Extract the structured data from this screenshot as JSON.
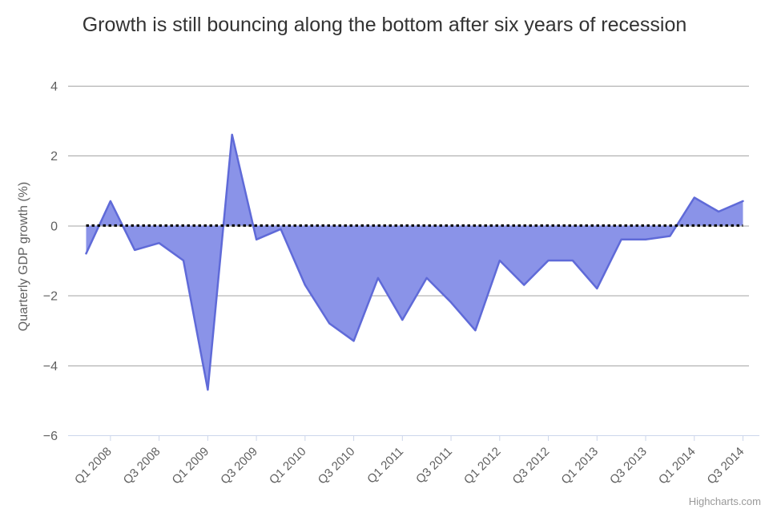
{
  "title": "Growth is still bouncing along the bottom after six years of recession",
  "credit": "Highcharts.com",
  "chart_data": {
    "type": "area",
    "title": "Growth is still bouncing along the bottom after six years of recession",
    "xlabel": "",
    "ylabel": "Quarterly GDP growth (%)",
    "categories": [
      "Q4 2007",
      "Q1 2008",
      "Q2 2008",
      "Q3 2008",
      "Q4 2008",
      "Q1 2009",
      "Q2 2009",
      "Q3 2009",
      "Q4 2009",
      "Q1 2010",
      "Q2 2010",
      "Q3 2010",
      "Q4 2010",
      "Q1 2011",
      "Q2 2011",
      "Q3 2011",
      "Q4 2011",
      "Q1 2012",
      "Q2 2012",
      "Q3 2012",
      "Q4 2012",
      "Q1 2013",
      "Q2 2013",
      "Q3 2013",
      "Q4 2013",
      "Q1 2014",
      "Q2 2014",
      "Q3 2014"
    ],
    "values": [
      -0.8,
      0.7,
      -0.7,
      -0.5,
      -1.0,
      -4.7,
      2.6,
      -0.4,
      -0.1,
      -1.7,
      -2.8,
      -3.3,
      -1.5,
      -2.7,
      -1.5,
      -2.2,
      -3.0,
      -1.0,
      -1.7,
      -1.0,
      -1.0,
      -1.8,
      -0.4,
      -0.4,
      -0.3,
      0.8,
      0.4,
      0.7
    ],
    "x_tick_labels": [
      "Q1 2008",
      "Q3 2008",
      "Q1 2009",
      "Q3 2009",
      "Q1 2010",
      "Q3 2010",
      "Q1 2011",
      "Q3 2011",
      "Q1 2012",
      "Q3 2012",
      "Q1 2013",
      "Q3 2013",
      "Q1 2014",
      "Q3 2014"
    ],
    "yticks": [
      4,
      2,
      0,
      -2,
      -4,
      -6
    ],
    "ylim": [
      -6,
      4
    ],
    "grid": true,
    "legend": false,
    "zero_line_style": "dotted",
    "colors": {
      "series_line": "#5f6ad8",
      "series_fill": "#8a93e8",
      "grid": "#a6a6a6",
      "axis": "#ccd6eb",
      "tick_text": "#606060",
      "axis_title": "#606060",
      "title_text": "#333333",
      "credit_text": "#999999",
      "zero_line": "#000000",
      "background": "#ffffff"
    }
  }
}
